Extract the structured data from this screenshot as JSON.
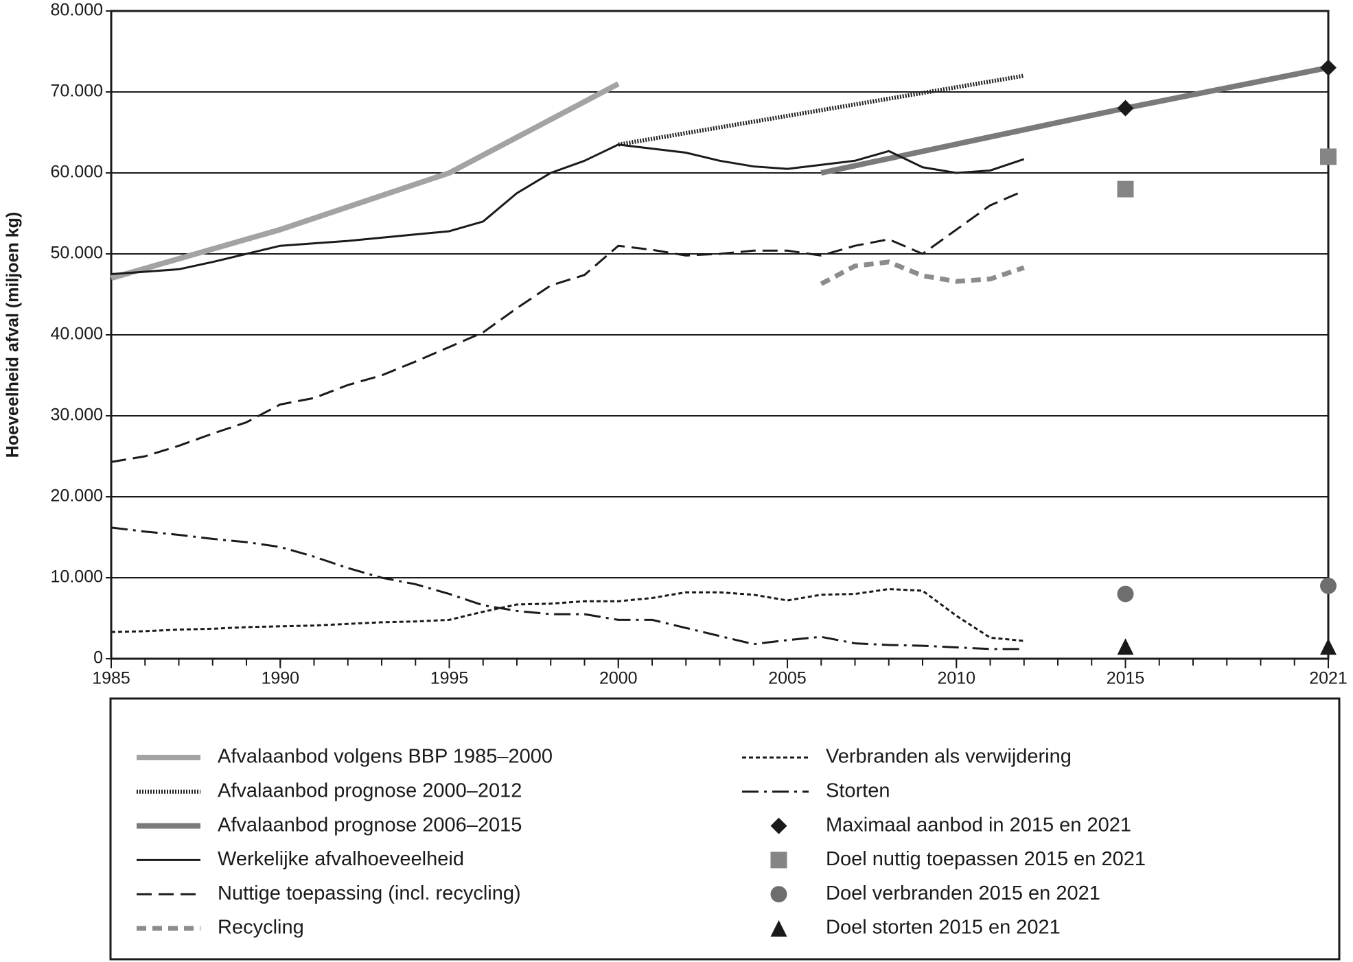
{
  "chart_data": {
    "type": "line",
    "y_label": "Hoeveelheid afval (miljoen kg)",
    "xlim": [
      1985,
      2021
    ],
    "xticks": [
      1985,
      1990,
      1995,
      2000,
      2005,
      2010,
      2015,
      2021
    ],
    "xminorticks": [
      1985,
      1986,
      1987,
      1988,
      1989,
      1990,
      1991,
      1992,
      1993,
      1994,
      1995,
      1996,
      1997,
      1998,
      1999,
      2000,
      2001,
      2002,
      2003,
      2004,
      2005,
      2006,
      2007,
      2008,
      2009,
      2010,
      2011,
      2012,
      2013,
      2014,
      2015,
      2016,
      2017,
      2018,
      2019,
      2020,
      2021
    ],
    "ylim": [
      0,
      80000
    ],
    "yticks": [
      {
        "value": 0,
        "label": "0"
      },
      {
        "value": 10000,
        "label": "10.000"
      },
      {
        "value": 20000,
        "label": "20.000"
      },
      {
        "value": 30000,
        "label": "30.000"
      },
      {
        "value": 40000,
        "label": "40.000"
      },
      {
        "value": 50000,
        "label": "50.000"
      },
      {
        "value": 60000,
        "label": "60.000"
      },
      {
        "value": 70000,
        "label": "70.000"
      },
      {
        "value": 80000,
        "label": "80.000"
      }
    ],
    "grid": true,
    "series": [
      {
        "name": "Afvalaanbod volgens BBP 1985–2000",
        "color": "#a3a3a3",
        "linestyle": "solid",
        "width": 8,
        "x": [
          1985,
          1990,
          1995,
          2000
        ],
        "values": [
          47000,
          53000,
          60000,
          71000
        ]
      },
      {
        "name": "Afvalaanbod prognose 2000–2012",
        "color": "#222222",
        "linestyle": "dotted",
        "width": 6,
        "x": [
          2000,
          2012
        ],
        "values": [
          63500,
          72000
        ]
      },
      {
        "name": "Afvalaanbod prognose 2006–2015",
        "color": "#7a7a7a",
        "linestyle": "solid",
        "width": 8,
        "x": [
          2006,
          2015,
          2021
        ],
        "values": [
          60000,
          68000,
          73000
        ]
      },
      {
        "name": "Werkelijke afvalhoeveelheid",
        "color": "#1a1a1a",
        "linestyle": "solid",
        "width": 3,
        "x": [
          1985,
          1986,
          1987,
          1988,
          1989,
          1990,
          1991,
          1992,
          1993,
          1994,
          1995,
          1996,
          1997,
          1998,
          1999,
          2000,
          2001,
          2002,
          2003,
          2004,
          2005,
          2006,
          2007,
          2008,
          2009,
          2010,
          2011,
          2012
        ],
        "values": [
          47500,
          47800,
          48100,
          49000,
          50000,
          51000,
          51300,
          51600,
          52000,
          52400,
          52800,
          54000,
          57500,
          60000,
          61500,
          63500,
          63000,
          62500,
          61500,
          60800,
          60500,
          61000,
          61500,
          62700,
          60700,
          60000,
          60300,
          61700
        ]
      },
      {
        "name": "Nuttige toepassing (incl. recycling)",
        "color": "#1a1a1a",
        "linestyle": "long-dashed",
        "width": 3,
        "x": [
          1985,
          1986,
          1987,
          1988,
          1989,
          1990,
          1991,
          1992,
          1993,
          1994,
          1995,
          1996,
          1997,
          1998,
          1999,
          2000,
          2001,
          2002,
          2003,
          2004,
          2005,
          2006,
          2007,
          2008,
          2009,
          2010,
          2011,
          2012
        ],
        "values": [
          24300,
          25000,
          26300,
          27800,
          29200,
          31400,
          32200,
          33800,
          35000,
          36700,
          38500,
          40300,
          43300,
          46100,
          47400,
          51000,
          50500,
          49800,
          50000,
          50400,
          50400,
          49800,
          51000,
          51800,
          50000,
          53000,
          56000,
          57800
        ]
      },
      {
        "name": "Recycling",
        "color": "#8c8c8c",
        "linestyle": "dashed",
        "width": 7,
        "x": [
          2006,
          2007,
          2008,
          2009,
          2010,
          2011,
          2012
        ],
        "values": [
          46300,
          48500,
          49000,
          47300,
          46600,
          46900,
          48300
        ]
      },
      {
        "name": "Verbranden als verwijdering",
        "color": "#1a1a1a",
        "linestyle": "short-dashed",
        "width": 3,
        "x": [
          1985,
          1986,
          1987,
          1988,
          1989,
          1990,
          1991,
          1992,
          1993,
          1994,
          1995,
          1996,
          1997,
          1998,
          1999,
          2000,
          2001,
          2002,
          2003,
          2004,
          2005,
          2006,
          2007,
          2008,
          2009,
          2010,
          2011,
          2012
        ],
        "values": [
          3300,
          3400,
          3600,
          3700,
          3900,
          4000,
          4100,
          4300,
          4500,
          4600,
          4800,
          5800,
          6700,
          6800,
          7100,
          7100,
          7500,
          8200,
          8200,
          7900,
          7200,
          7900,
          8000,
          8600,
          8400,
          5300,
          2600,
          2200
        ]
      },
      {
        "name": "Storten",
        "color": "#1a1a1a",
        "linestyle": "dash-dot",
        "width": 3,
        "x": [
          1985,
          1986,
          1987,
          1988,
          1989,
          1990,
          1991,
          1992,
          1993,
          1994,
          1995,
          1996,
          1997,
          1998,
          1999,
          2000,
          2001,
          2002,
          2003,
          2004,
          2005,
          2006,
          2007,
          2008,
          2009,
          2010,
          2011,
          2012
        ],
        "values": [
          16200,
          15700,
          15300,
          14800,
          14400,
          13800,
          12600,
          11200,
          10000,
          9200,
          8000,
          6600,
          5900,
          5500,
          5500,
          4800,
          4800,
          3800,
          2800,
          1800,
          2300,
          2700,
          1900,
          1700,
          1600,
          1400,
          1200,
          1200
        ]
      },
      {
        "name": "Maximaal aanbod in 2015 en 2021",
        "color": "#1a1a1a",
        "linestyle": "none",
        "marker": "diamond",
        "x": [
          2015,
          2021
        ],
        "values": [
          68000,
          73000
        ]
      },
      {
        "name": "Doel nuttig toepassen 2015 en 2021",
        "color": "#858585",
        "linestyle": "none",
        "marker": "square",
        "x": [
          2015,
          2021
        ],
        "values": [
          58000,
          62000
        ]
      },
      {
        "name": "Doel verbranden 2015 en 2021",
        "color": "#6e6e6e",
        "linestyle": "none",
        "marker": "circle",
        "x": [
          2015,
          2021
        ],
        "values": [
          8000,
          9000
        ]
      },
      {
        "name": "Doel storten 2015 en 2021",
        "color": "#1a1a1a",
        "linestyle": "none",
        "marker": "triangle",
        "x": [
          2015,
          2021
        ],
        "values": [
          1500,
          1500
        ]
      }
    ]
  }
}
